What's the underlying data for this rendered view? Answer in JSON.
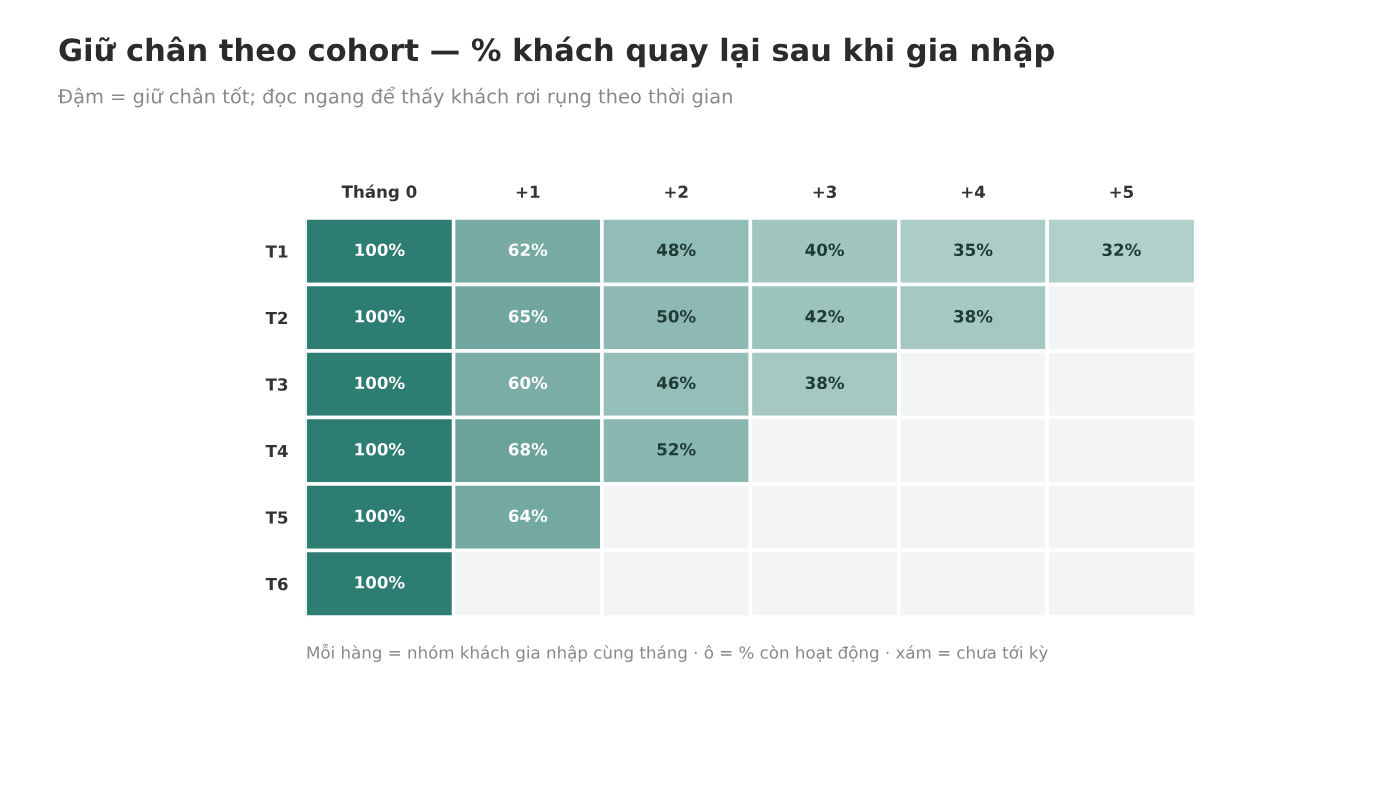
{
  "chart_data": {
    "type": "heatmap",
    "title": "Giữ chân theo cohort — % khách quay lại sau khi gia nhập",
    "subtitle": "Đậm = giữ chân tốt; đọc ngang để thấy khách rơi rụng theo thời gian",
    "categories": [
      "Tháng 0",
      "+1",
      "+2",
      "+3",
      "+4",
      "+5"
    ],
    "y_categories": [
      "T1",
      "T2",
      "T3",
      "T4",
      "T5",
      "T6"
    ],
    "cells": [
      [
        100,
        62,
        48,
        40,
        35,
        32
      ],
      [
        100,
        65,
        50,
        42,
        38,
        null
      ],
      [
        100,
        60,
        46,
        38,
        null,
        null
      ],
      [
        100,
        68,
        52,
        null,
        null,
        null
      ],
      [
        100,
        64,
        null,
        null,
        null,
        null
      ],
      [
        100,
        null,
        null,
        null,
        null,
        null
      ]
    ],
    "cell_labels": [
      [
        "100%",
        "62%",
        "48%",
        "40%",
        "35%",
        "32%"
      ],
      [
        "100%",
        "65%",
        "50%",
        "42%",
        "38%",
        null
      ],
      [
        "100%",
        "60%",
        "46%",
        "38%",
        null,
        null
      ],
      [
        "100%",
        "68%",
        "52%",
        null,
        null,
        null
      ],
      [
        "100%",
        "64%",
        null,
        null,
        null,
        null
      ],
      [
        "100%",
        null,
        null,
        null,
        null,
        null
      ]
    ],
    "annotations": [
      "Mỗi hàng = nhóm khách gia nhập cùng tháng · ô = % còn hoạt động · xám = chưa tới kỳ"
    ],
    "grid": false
  }
}
